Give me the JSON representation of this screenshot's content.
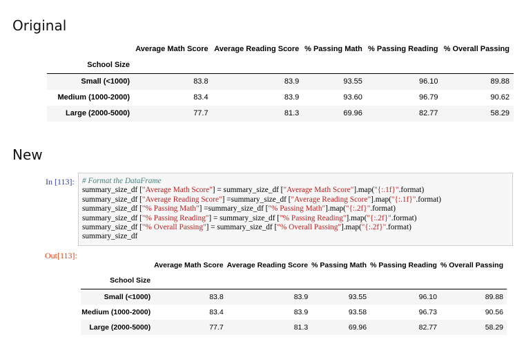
{
  "headings": {
    "original": "Original",
    "new": "New"
  },
  "original_table": {
    "columns": [
      "Average Math Score",
      "Average Reading Score",
      "% Passing Math",
      "% Passing Reading",
      "% Overall Passing"
    ],
    "index_name": "School Size",
    "rows": [
      {
        "label": "Small (<1000)",
        "values": [
          "83.8",
          "83.9",
          "93.55",
          "96.10",
          "89.88"
        ]
      },
      {
        "label": "Medium (1000-2000)",
        "values": [
          "83.4",
          "83.9",
          "93.60",
          "96.79",
          "90.62"
        ]
      },
      {
        "label": "Large (2000-5000)",
        "values": [
          "77.7",
          "81.3",
          "69.96",
          "82.77",
          "58.29"
        ]
      }
    ]
  },
  "notebook": {
    "in_prompt": "In [113]:",
    "out_prompt": "Out[113]:",
    "code": {
      "comment": "# Format the DataFrame",
      "lines": [
        {
          "a": "summary_size_df [",
          "s1": "\"Average Math Score\"",
          "b": "] = summary_size_df [",
          "s2": "\"Average Math Score\"",
          "c": "].map(",
          "s3": "\"{:.1f}\"",
          "d": ".format)"
        },
        {
          "a": "summary_size_df [",
          "s1": "\"Average Reading Score\"",
          "b": "] =summary_size_df [",
          "s2": "\"Average Reading Score\"",
          "c": "].map(",
          "s3": "\"{:.1f}\"",
          "d": ".format)"
        },
        {
          "a": "summary_size_df [",
          "s1": "\"% Passing Math\"",
          "b": "] =summary_size_df [",
          "s2": "\"% Passing Math\"",
          "c": "].map(",
          "s3": "\"{:.2f}\"",
          "d": ".format)"
        },
        {
          "a": "summary_size_df [",
          "s1": "\"% Passing Reading\"",
          "b": "] = summary_size_df [",
          "s2": "\"% Passing Reading\"",
          "c": "].map(",
          "s3": "\"{:.2f}\"",
          "d": ".format)"
        },
        {
          "a": "summary_size_df [",
          "s1": "\"% Overall Passing\"",
          "b": "] = summary_size_df [",
          "s2": "\"% Overall Passing\"",
          "c": "].map(",
          "s3": "\"{:.2f}\"",
          "d": ".format)"
        }
      ],
      "last_line": "summary_size_df"
    }
  },
  "new_table": {
    "columns": [
      "Average Math Score",
      "Average Reading Score",
      "% Passing Math",
      "% Passing Reading",
      "% Overall Passing"
    ],
    "index_name": "School Size",
    "rows": [
      {
        "label": "Small (<1000)",
        "values": [
          "83.8",
          "83.9",
          "93.55",
          "96.10",
          "89.88"
        ]
      },
      {
        "label": "Medium (1000-2000)",
        "values": [
          "83.4",
          "83.9",
          "93.58",
          "96.73",
          "90.56"
        ]
      },
      {
        "label": "Large (2000-5000)",
        "values": [
          "77.7",
          "81.3",
          "69.96",
          "82.77",
          "58.29"
        ]
      }
    ]
  },
  "colors": {
    "in_prompt": "#303f9f",
    "out_prompt": "#d84315",
    "comment": "#408080",
    "string": "#ba2121",
    "row_stripe": "#f5f5f5"
  }
}
